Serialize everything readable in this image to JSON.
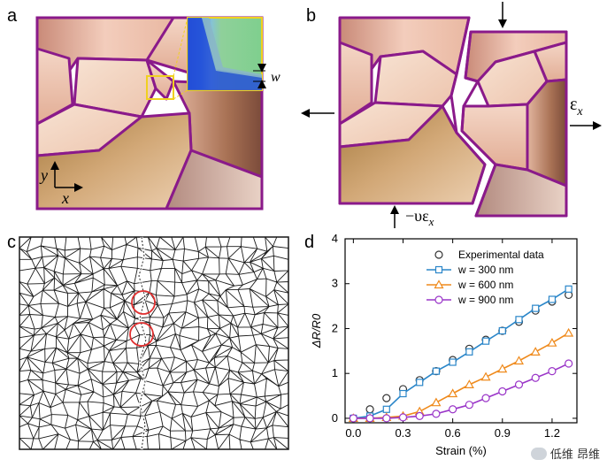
{
  "panels": {
    "a": "a",
    "b": "b",
    "c": "c",
    "d": "d"
  },
  "panel_a": {
    "width_symbol": "w",
    "axis_x": "x",
    "axis_y": "y"
  },
  "panel_b": {
    "strain_label": "ε",
    "strain_sub": "x",
    "poisson_label": "−υε",
    "poisson_sub": "x"
  },
  "colors": {
    "grain_boundary": "#8a1a8a",
    "series_300": "#2a86c9",
    "series_600": "#ef8a1c",
    "series_900": "#9a35c8",
    "crack_circle": "#e03030"
  },
  "chart_data": {
    "type": "line",
    "title": "",
    "xlabel": "Strain (%)",
    "ylabel": "ΔR/R0",
    "xlim": [
      -0.05,
      1.35
    ],
    "ylim": [
      -0.1,
      4.0
    ],
    "xticks": [
      "0.0",
      "0.3",
      "0.6",
      "0.9",
      "1.2"
    ],
    "yticks": [
      "0",
      "1",
      "2",
      "3",
      "4"
    ],
    "legend_position": "top-right",
    "series": [
      {
        "name": "Experimental data",
        "marker": "circle",
        "line": false,
        "x": [
          0.0,
          0.1,
          0.2,
          0.3,
          0.4,
          0.5,
          0.6,
          0.7,
          0.8,
          0.9,
          1.0,
          1.1,
          1.2,
          1.3
        ],
        "y": [
          0.0,
          0.2,
          0.45,
          0.65,
          0.85,
          1.05,
          1.3,
          1.55,
          1.75,
          1.95,
          2.15,
          2.4,
          2.6,
          2.75
        ]
      },
      {
        "name": "w = 300 nm",
        "marker": "square",
        "line": true,
        "x": [
          0.0,
          0.1,
          0.2,
          0.3,
          0.4,
          0.5,
          0.6,
          0.7,
          0.8,
          0.9,
          1.0,
          1.1,
          1.2,
          1.3
        ],
        "y": [
          0.0,
          0.05,
          0.2,
          0.55,
          0.8,
          1.05,
          1.25,
          1.48,
          1.72,
          1.95,
          2.2,
          2.45,
          2.65,
          2.88
        ]
      },
      {
        "name": "w = 600 nm",
        "marker": "triangle",
        "line": true,
        "x": [
          0.0,
          0.1,
          0.2,
          0.3,
          0.4,
          0.5,
          0.6,
          0.7,
          0.8,
          0.9,
          1.0,
          1.1,
          1.2,
          1.3
        ],
        "y": [
          0.0,
          0.0,
          0.02,
          0.05,
          0.15,
          0.35,
          0.55,
          0.75,
          0.92,
          1.1,
          1.28,
          1.48,
          1.68,
          1.9
        ]
      },
      {
        "name": "w = 900 nm",
        "marker": "circle",
        "line": true,
        "x": [
          0.0,
          0.1,
          0.2,
          0.3,
          0.4,
          0.5,
          0.6,
          0.7,
          0.8,
          0.9,
          1.0,
          1.1,
          1.2,
          1.3
        ],
        "y": [
          0.0,
          0.0,
          0.0,
          0.02,
          0.05,
          0.1,
          0.2,
          0.3,
          0.45,
          0.6,
          0.75,
          0.9,
          1.05,
          1.22
        ]
      }
    ]
  },
  "watermark": {
    "text": "低维 昂维"
  }
}
